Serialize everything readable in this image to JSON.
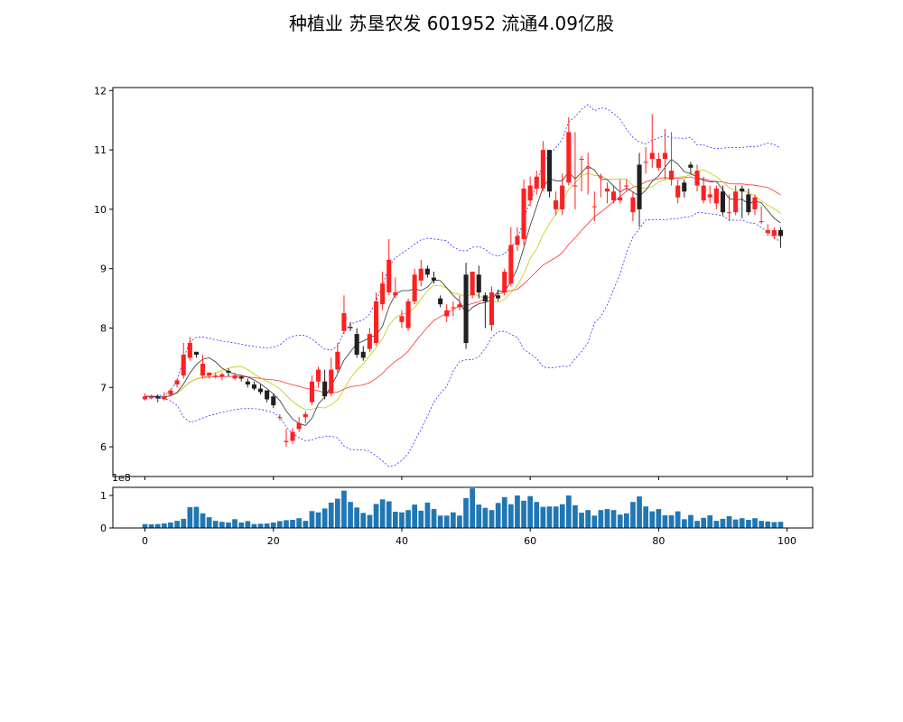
{
  "chart_data": [
    {
      "type": "candlestick",
      "title": "种植业 苏垦农发 601952 流通4.09亿股",
      "xlabel": "",
      "ylabel": "",
      "xlim": [
        -5,
        104
      ],
      "ylim": [
        5.5,
        12.05
      ],
      "yticks": [
        "6",
        "7",
        "8",
        "9",
        "10",
        "11",
        "12"
      ],
      "legend": "none",
      "grid": false,
      "up_color": "#ff2020",
      "down_color": "#202020",
      "overlays": [
        {
          "kind": "moving-average",
          "color": "#303030"
        },
        {
          "kind": "moving-average",
          "color": "#c8c800"
        },
        {
          "kind": "moving-average",
          "color": "#ff3030"
        },
        {
          "kind": "bollinger-band",
          "color": "#3030ff",
          "style": "dashed"
        }
      ],
      "x": [
        0,
        1,
        2,
        3,
        4,
        5,
        6,
        7,
        8,
        9,
        10,
        11,
        12,
        13,
        14,
        15,
        16,
        17,
        18,
        19,
        20,
        21,
        22,
        23,
        24,
        25,
        26,
        27,
        28,
        29,
        30,
        31,
        32,
        33,
        34,
        35,
        36,
        37,
        38,
        39,
        40,
        41,
        42,
        43,
        44,
        45,
        46,
        47,
        48,
        49,
        50,
        51,
        52,
        53,
        54,
        55,
        56,
        57,
        58,
        59,
        60,
        61,
        62,
        63,
        64,
        65,
        66,
        67,
        68,
        69,
        70,
        71,
        72,
        73,
        74,
        75,
        76,
        77,
        78,
        79,
        80,
        81,
        82,
        83,
        84,
        85,
        86,
        87,
        88,
        89,
        90,
        91,
        92,
        93,
        94,
        95,
        96,
        97,
        98,
        99
      ],
      "close": [
        6.85,
        6.85,
        6.82,
        6.84,
        6.95,
        7.12,
        7.55,
        7.75,
        7.55,
        7.4,
        7.25,
        7.2,
        7.22,
        7.25,
        7.2,
        7.15,
        7.05,
        6.98,
        6.92,
        6.8,
        6.7,
        6.5,
        6.1,
        6.25,
        6.4,
        6.55,
        7.1,
        7.3,
        6.85,
        7.3,
        7.6,
        8.25,
        8.0,
        7.55,
        7.5,
        7.9,
        8.45,
        8.75,
        9.15,
        8.6,
        8.2,
        8.45,
        8.9,
        9.0,
        8.9,
        8.8,
        8.4,
        8.3,
        8.35,
        8.4,
        7.75,
        8.95,
        8.6,
        8.45,
        8.6,
        8.5,
        8.95,
        9.4,
        9.55,
        10.35,
        10.4,
        10.55,
        11.0,
        10.3,
        10.15,
        10.4,
        11.3,
        10.4,
        10.85,
        10.7,
        10.05,
        10.55,
        10.35,
        10.3,
        10.2,
        10.4,
        10.2,
        10.0,
        10.8,
        10.95,
        10.85,
        10.95,
        10.65,
        10.4,
        10.3,
        10.7,
        10.65,
        10.4,
        10.25,
        10.35,
        9.95,
        9.95,
        10.3,
        10.3,
        9.95,
        10.2,
        9.8,
        9.65,
        9.65,
        9.55
      ],
      "open": [
        6.8,
        6.82,
        6.85,
        6.8,
        6.88,
        7.05,
        7.2,
        7.5,
        7.6,
        7.2,
        7.2,
        7.2,
        7.18,
        7.28,
        7.15,
        7.18,
        7.1,
        7.05,
        6.98,
        6.95,
        6.85,
        6.5,
        6.08,
        6.1,
        6.3,
        6.5,
        6.75,
        7.1,
        7.1,
        6.9,
        7.3,
        7.95,
        8.02,
        7.9,
        7.6,
        7.65,
        7.75,
        8.4,
        8.6,
        8.55,
        8.1,
        8.0,
        8.45,
        8.8,
        9.0,
        8.85,
        8.5,
        8.2,
        8.35,
        8.35,
        8.9,
        8.55,
        8.9,
        8.55,
        8.05,
        8.55,
        8.6,
        8.75,
        9.4,
        9.5,
        10.15,
        10.35,
        10.35,
        11.0,
        10.0,
        10.0,
        10.45,
        10.4,
        10.85,
        10.7,
        10.05,
        10.55,
        10.3,
        10.15,
        10.15,
        10.4,
        9.95,
        10.75,
        10.8,
        10.85,
        10.7,
        10.85,
        10.5,
        10.2,
        10.45,
        10.75,
        10.4,
        10.15,
        10.2,
        10.1,
        10.3,
        9.95,
        9.95,
        10.35,
        10.25,
        10.0,
        9.8,
        9.6,
        9.55,
        9.65
      ],
      "high": [
        6.9,
        6.88,
        6.88,
        6.92,
        6.98,
        7.15,
        7.75,
        7.85,
        7.6,
        7.55,
        7.25,
        7.25,
        7.25,
        7.32,
        7.25,
        7.2,
        7.15,
        7.1,
        7.05,
        6.95,
        6.9,
        6.55,
        6.3,
        6.32,
        6.5,
        6.6,
        7.2,
        7.35,
        7.3,
        7.5,
        7.75,
        8.55,
        8.1,
        8.0,
        7.7,
        8.0,
        8.6,
        8.95,
        9.5,
        8.85,
        8.3,
        8.5,
        9.0,
        9.15,
        9.05,
        8.95,
        8.55,
        8.4,
        8.45,
        8.55,
        9.1,
        8.95,
        9.05,
        8.6,
        8.7,
        8.65,
        9.0,
        9.7,
        9.7,
        10.5,
        10.55,
        10.65,
        11.15,
        11.0,
        10.3,
        10.6,
        11.55,
        11.3,
        10.9,
        10.95,
        10.3,
        10.6,
        10.45,
        10.4,
        10.5,
        10.5,
        10.3,
        10.95,
        11.05,
        11.6,
        10.95,
        11.35,
        11.3,
        10.5,
        10.5,
        10.8,
        10.75,
        10.55,
        10.4,
        10.4,
        10.4,
        10.25,
        10.4,
        10.4,
        10.35,
        10.25,
        10.05,
        9.75,
        9.7,
        9.7
      ],
      "low": [
        6.78,
        6.8,
        6.75,
        6.78,
        6.85,
        7.0,
        7.15,
        7.45,
        7.5,
        7.15,
        7.15,
        7.15,
        7.12,
        7.18,
        7.12,
        7.1,
        7.0,
        6.95,
        6.88,
        6.75,
        6.65,
        6.45,
        6.0,
        6.05,
        6.25,
        6.4,
        6.7,
        7.0,
        6.8,
        6.85,
        7.25,
        7.9,
        7.95,
        7.5,
        7.45,
        7.6,
        7.7,
        8.3,
        8.55,
        8.5,
        8.0,
        7.95,
        8.4,
        8.7,
        8.85,
        8.75,
        8.35,
        8.1,
        8.2,
        8.3,
        7.65,
        8.5,
        8.5,
        8.0,
        7.95,
        8.45,
        8.55,
        8.7,
        9.3,
        9.4,
        10.05,
        10.25,
        10.3,
        10.2,
        9.9,
        9.9,
        10.4,
        10.0,
        10.3,
        10.25,
        9.8,
        10.2,
        10.1,
        10.1,
        10.1,
        10.3,
        9.8,
        9.7,
        10.6,
        10.7,
        10.65,
        10.5,
        10.4,
        10.1,
        10.2,
        10.6,
        10.3,
        10.1,
        10.1,
        10.0,
        9.9,
        9.8,
        9.9,
        9.85,
        9.9,
        9.9,
        9.75,
        9.55,
        9.5,
        9.35
      ]
    },
    {
      "type": "bar",
      "title": "",
      "xlabel": "",
      "ylabel": "",
      "offset_label": "1e8",
      "xlim": [
        -5,
        104
      ],
      "ylim": [
        0,
        1.25
      ],
      "xticks": [
        "0",
        "20",
        "40",
        "60",
        "80",
        "100"
      ],
      "yticks": [
        "0",
        "1"
      ],
      "color": "#1f77b4",
      "x": [
        0,
        1,
        2,
        3,
        4,
        5,
        6,
        7,
        8,
        9,
        10,
        11,
        12,
        13,
        14,
        15,
        16,
        17,
        18,
        19,
        20,
        21,
        22,
        23,
        24,
        25,
        26,
        27,
        28,
        29,
        30,
        31,
        32,
        33,
        34,
        35,
        36,
        37,
        38,
        39,
        40,
        41,
        42,
        43,
        44,
        45,
        46,
        47,
        48,
        49,
        50,
        51,
        52,
        53,
        54,
        55,
        56,
        57,
        58,
        59,
        60,
        61,
        62,
        63,
        64,
        65,
        66,
        67,
        68,
        69,
        70,
        71,
        72,
        73,
        74,
        75,
        76,
        77,
        78,
        79,
        80,
        81,
        82,
        83,
        84,
        85,
        86,
        87,
        88,
        89,
        90,
        91,
        92,
        93,
        94,
        95,
        96,
        97,
        98,
        99
      ],
      "values": [
        0.12,
        0.11,
        0.12,
        0.14,
        0.17,
        0.22,
        0.28,
        0.64,
        0.65,
        0.45,
        0.33,
        0.22,
        0.19,
        0.17,
        0.27,
        0.17,
        0.21,
        0.12,
        0.13,
        0.14,
        0.17,
        0.21,
        0.24,
        0.25,
        0.3,
        0.22,
        0.52,
        0.48,
        0.6,
        0.78,
        0.9,
        1.15,
        0.8,
        0.63,
        0.46,
        0.4,
        0.74,
        0.88,
        0.82,
        0.5,
        0.48,
        0.55,
        0.72,
        0.53,
        0.78,
        0.58,
        0.38,
        0.38,
        0.48,
        0.38,
        0.92,
        1.22,
        0.72,
        0.62,
        0.55,
        0.77,
        0.95,
        0.73,
        1.0,
        0.84,
        0.98,
        0.8,
        0.65,
        0.66,
        0.66,
        0.73,
        1.0,
        0.7,
        0.47,
        0.55,
        0.38,
        0.55,
        0.58,
        0.55,
        0.41,
        0.45,
        0.8,
        0.97,
        0.66,
        0.51,
        0.58,
        0.39,
        0.39,
        0.51,
        0.27,
        0.4,
        0.22,
        0.31,
        0.39,
        0.22,
        0.28,
        0.36,
        0.26,
        0.3,
        0.25,
        0.3,
        0.22,
        0.2,
        0.18,
        0.19
      ]
    }
  ]
}
